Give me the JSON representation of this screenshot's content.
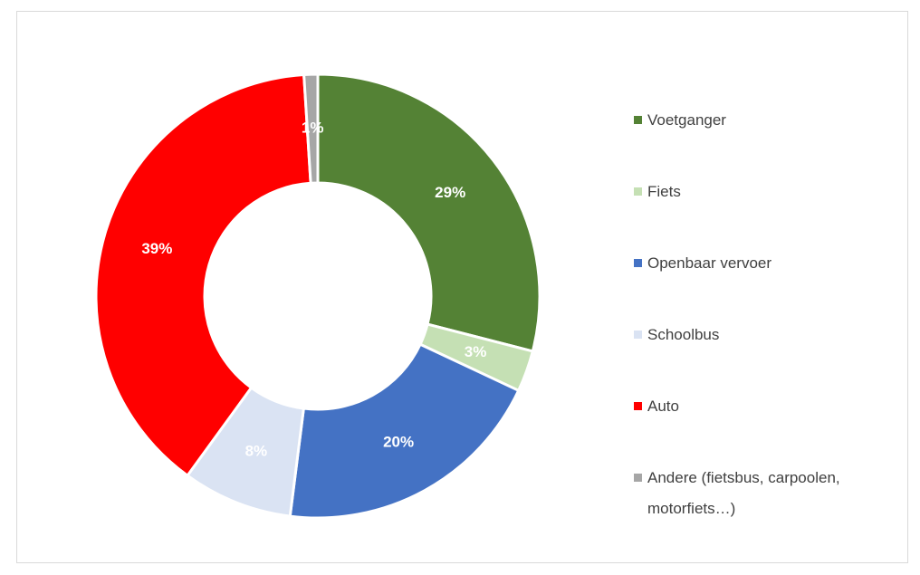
{
  "chart_data": {
    "type": "donut",
    "categories": [
      "Voetganger",
      "Fiets",
      "Openbaar vervoer",
      "Schoolbus",
      "Auto",
      "Andere (fietsbus, carpoolen, motorfiets…)"
    ],
    "values": [
      29,
      3,
      20,
      8,
      39,
      1
    ],
    "value_labels": [
      "29%",
      "3%",
      "20%",
      "8%",
      "39%",
      "1%"
    ],
    "colors": [
      "#548235",
      "#c5e0b4",
      "#4472c4",
      "#dae3f3",
      "#ff0000",
      "#a6a6a6"
    ],
    "legend": "right"
  }
}
